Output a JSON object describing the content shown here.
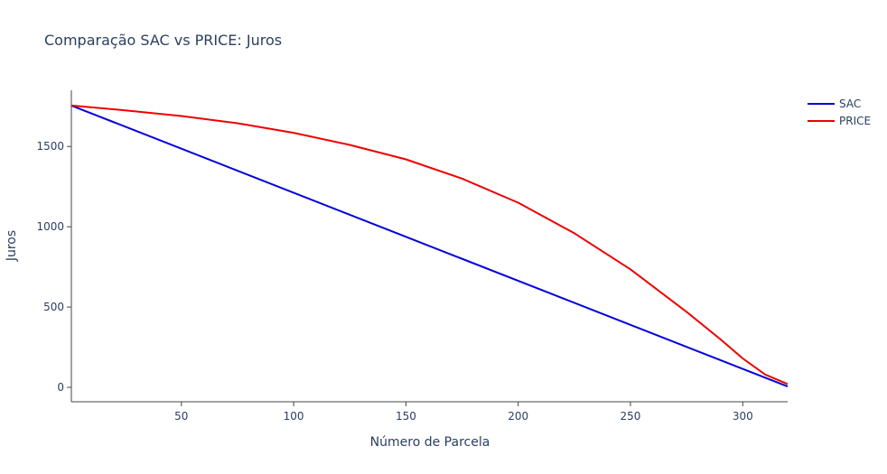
{
  "chart_data": {
    "type": "line",
    "title": "Comparação SAC vs PRICE: Juros",
    "xlabel": "Número de Parcela",
    "ylabel": "Juros",
    "xlim": [
      1,
      320
    ],
    "ylim": [
      -90,
      1850
    ],
    "x_ticks": [
      50,
      100,
      150,
      200,
      250,
      300
    ],
    "y_ticks": [
      0,
      500,
      1000,
      1500
    ],
    "grid": false,
    "legend_position": "top-right",
    "series": [
      {
        "name": "SAC",
        "color": "#0000dd",
        "x": [
          1,
          320
        ],
        "y": [
          1755,
          5
        ]
      },
      {
        "name": "PRICE",
        "color": "#ee0000",
        "x": [
          1,
          25,
          50,
          75,
          100,
          125,
          150,
          175,
          200,
          225,
          250,
          275,
          290,
          300,
          310,
          320
        ],
        "y": [
          1755,
          1725,
          1690,
          1645,
          1585,
          1510,
          1420,
          1300,
          1150,
          960,
          735,
          470,
          300,
          180,
          80,
          20
        ]
      }
    ]
  }
}
